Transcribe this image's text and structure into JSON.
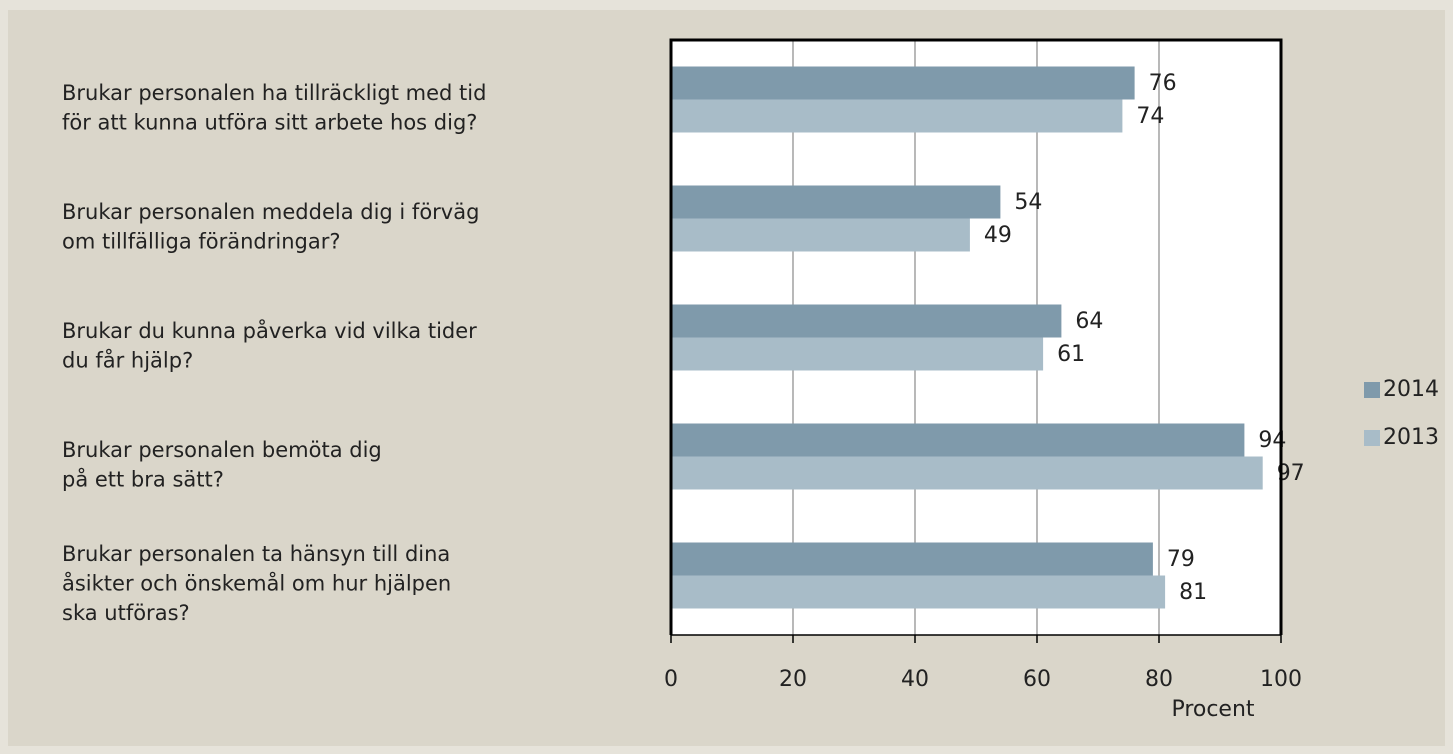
{
  "chart_data": {
    "type": "bar",
    "orientation": "horizontal",
    "categories": [
      [
        "Brukar personalen ha tillräckligt med tid",
        "för att kunna utföra sitt arbete hos dig?"
      ],
      [
        "Brukar personalen meddela dig i förväg",
        "om tillfälliga förändringar?"
      ],
      [
        "Brukar du kunna påverka vid vilka tider",
        "du får hjälp?"
      ],
      [
        "Brukar personalen bemöta dig",
        "på ett bra sätt?"
      ],
      [
        "Brukar personalen ta hänsyn till dina",
        "åsikter och önskemål om hur hjälpen",
        "ska utföras?"
      ]
    ],
    "series": [
      {
        "name": "2014",
        "color": "#7f9aab",
        "values": [
          76,
          54,
          64,
          94,
          79
        ]
      },
      {
        "name": "2013",
        "color": "#a8bcc8",
        "values": [
          74,
          49,
          61,
          97,
          81
        ]
      }
    ],
    "xlabel": "Procent",
    "xlim": [
      0,
      100
    ],
    "xticks": [
      0,
      20,
      40,
      60,
      80,
      100
    ],
    "grid": true,
    "legend": "right"
  }
}
